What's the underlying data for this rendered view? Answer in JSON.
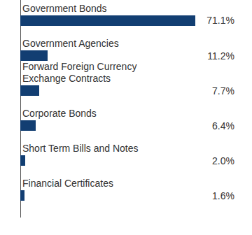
{
  "chart_data": {
    "type": "bar",
    "orientation": "horizontal",
    "categories": [
      "Government Bonds",
      "Government Agencies",
      "Forward Foreign Currency Exchange Contracts",
      "Corporate Bonds",
      "Short Term Bills and Notes",
      "Financial Certificates"
    ],
    "values": [
      71.1,
      11.2,
      7.7,
      6.4,
      2.0,
      1.6
    ],
    "value_labels": [
      "71.1%",
      "11.2%",
      "7.7%",
      "6.4%",
      "2.0%",
      "1.6%"
    ],
    "color": "#123e72",
    "xlim": [
      0,
      72
    ],
    "data_labels": true,
    "tick_labels": false,
    "grid": false
  }
}
